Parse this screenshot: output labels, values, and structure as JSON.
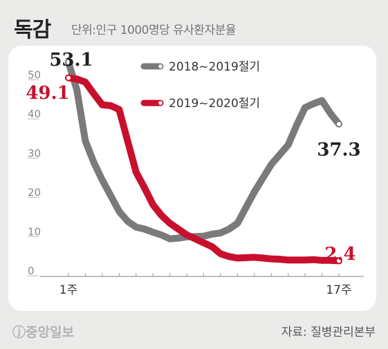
{
  "header": {
    "title": "독감",
    "subtitle": "단위:인구 1000명당 유사환자분율"
  },
  "footer": {
    "logo": "ⓙ중앙일보",
    "source": "자료: 질병관리본부"
  },
  "chart_data": {
    "type": "line",
    "title": "독감",
    "subtitle": "단위:인구 1000명당 유사환자분율",
    "ylim": [
      0,
      55
    ],
    "yticks": [
      0,
      10,
      20,
      30,
      40,
      50
    ],
    "x_labels": {
      "first": "1주",
      "last": "17주"
    },
    "grid": false,
    "legend_position": "top-right",
    "colors": {
      "series1": "#7a7a7a",
      "series2": "#c8102e"
    },
    "series": [
      {
        "name": "2018~2019절기",
        "x": [
          1,
          1.5,
          2,
          2.5,
          3,
          3.5,
          4,
          4.5,
          5,
          5.5,
          6,
          6.5,
          7,
          7.5,
          8,
          8.5,
          9,
          9.5,
          10,
          10.5,
          11,
          11.5,
          12,
          12.5,
          13,
          13.5,
          14,
          14.5,
          15,
          15.5,
          16,
          16.5,
          17
        ],
        "values": [
          53.1,
          46,
          33,
          27.5,
          23,
          19,
          15,
          12.5,
          11,
          10.5,
          9.7,
          9,
          8,
          8.2,
          8.5,
          8.6,
          8.7,
          9.2,
          9.5,
          10.5,
          12,
          16,
          20,
          23.5,
          27,
          29.5,
          32,
          37,
          41.5,
          42.5,
          43.3,
          40,
          37.3
        ],
        "start_label": "53.1",
        "end_label": "37.3"
      },
      {
        "name": "2019~2020절기",
        "x": [
          1,
          1.5,
          2,
          2.5,
          3,
          3.5,
          4,
          4.5,
          5,
          5.5,
          6,
          6.5,
          7,
          7.5,
          8,
          8.5,
          9,
          9.5,
          10,
          10.5,
          11,
          11.5,
          12,
          12.5,
          13,
          13.5,
          14,
          14.5,
          15,
          15.5,
          16,
          16.5,
          17
        ],
        "values": [
          49.1,
          48.8,
          48,
          45,
          42.2,
          42,
          41,
          33,
          25,
          21,
          16.7,
          14,
          12,
          10.5,
          9,
          8,
          7,
          6,
          4.2,
          3.5,
          3.1,
          3.2,
          3.3,
          3.1,
          2.9,
          2.8,
          2.6,
          2.6,
          2.6,
          2.7,
          2.5,
          2.5,
          2.4
        ],
        "start_label": "49.1",
        "end_label": "2.4"
      }
    ]
  }
}
